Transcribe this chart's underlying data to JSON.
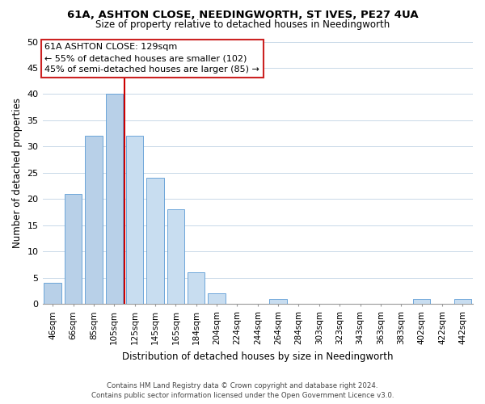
{
  "title": "61A, ASHTON CLOSE, NEEDINGWORTH, ST IVES, PE27 4UA",
  "subtitle": "Size of property relative to detached houses in Needingworth",
  "xlabel": "Distribution of detached houses by size in Needingworth",
  "ylabel": "Number of detached properties",
  "bar_labels": [
    "46sqm",
    "66sqm",
    "85sqm",
    "105sqm",
    "125sqm",
    "145sqm",
    "165sqm",
    "184sqm",
    "204sqm",
    "224sqm",
    "244sqm",
    "264sqm",
    "284sqm",
    "303sqm",
    "323sqm",
    "343sqm",
    "363sqm",
    "383sqm",
    "402sqm",
    "422sqm",
    "442sqm"
  ],
  "bar_values": [
    4,
    21,
    32,
    40,
    32,
    24,
    18,
    6,
    2,
    0,
    0,
    1,
    0,
    0,
    0,
    0,
    0,
    0,
    1,
    0,
    1
  ],
  "bar_color_left": "#b8d0e8",
  "bar_color_right": "#c8ddf0",
  "bar_edge_color": "#5b9bd5",
  "red_line_x": 3.5,
  "ylim": [
    0,
    50
  ],
  "yticks": [
    0,
    5,
    10,
    15,
    20,
    25,
    30,
    35,
    40,
    45,
    50
  ],
  "annotation_title": "61A ASHTON CLOSE: 129sqm",
  "annotation_line1": "← 55% of detached houses are smaller (102)",
  "annotation_line2": "45% of semi-detached houses are larger (85) →",
  "footer_line1": "Contains HM Land Registry data © Crown copyright and database right 2024.",
  "footer_line2": "Contains public sector information licensed under the Open Government Licence v3.0.",
  "background_color": "#ffffff",
  "grid_color": "#c8d8e8"
}
